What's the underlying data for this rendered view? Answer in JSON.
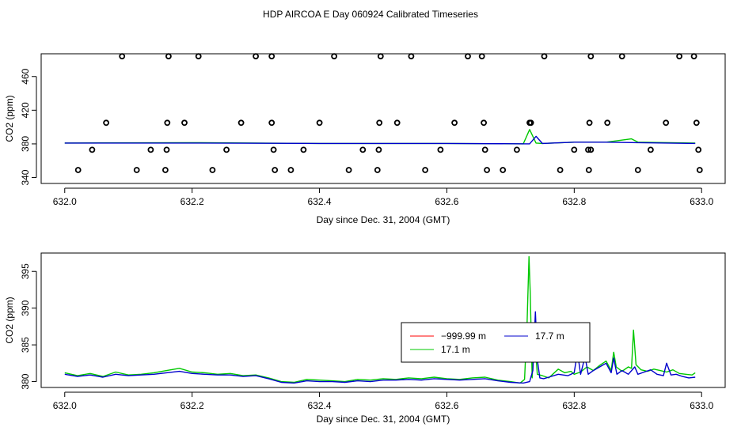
{
  "title": "HDP AIRCOA E  Day 060924  Calibrated Timeseries",
  "colors": {
    "red": "#ff0000",
    "green": "#00c800",
    "blue": "#0000cc",
    "black": "#000000"
  },
  "chart_data": [
    {
      "type": "scatter",
      "xlabel": "Day since Dec. 31, 2004 (GMT)",
      "ylabel": "CO2 (ppm)",
      "xlim": [
        632.0,
        633.0
      ],
      "ylim": [
        333,
        487
      ],
      "xticks": [
        "632.0",
        "632.2",
        "632.4",
        "632.6",
        "632.8",
        "633.0"
      ],
      "yticks": [
        "340",
        "380",
        "420",
        "460"
      ],
      "grid": false,
      "points": {
        "y484": [
          632.09,
          632.163,
          632.21,
          632.3,
          632.325,
          632.423,
          632.496,
          632.544,
          632.633,
          632.655,
          632.753,
          632.826,
          632.875,
          632.965,
          632.988
        ],
        "y405": [
          632.065,
          632.161,
          632.188,
          632.277,
          632.325,
          632.4,
          632.494,
          632.522,
          632.612,
          632.658,
          632.73,
          632.732,
          632.824,
          632.852,
          632.944,
          632.992
        ],
        "y373": [
          632.043,
          632.135,
          632.16,
          632.254,
          632.328,
          632.375,
          632.468,
          632.493,
          632.59,
          632.66,
          632.71,
          632.8,
          632.822,
          632.826,
          632.92,
          632.995
        ],
        "y349": [
          632.021,
          632.113,
          632.158,
          632.232,
          632.33,
          632.355,
          632.446,
          632.491,
          632.566,
          632.663,
          632.688,
          632.778,
          632.823,
          632.9,
          632.997
        ]
      },
      "series": [
        {
          "name": "",
          "color": "#00c800",
          "x": [
            632.0,
            632.2,
            632.4,
            632.6,
            632.72,
            632.73,
            632.74,
            632.75,
            632.8,
            632.85,
            632.89,
            632.9,
            632.99
          ],
          "y": [
            381.0,
            381.5,
            380.5,
            380.5,
            380.0,
            397.0,
            381.0,
            380.5,
            382.0,
            382.0,
            386.0,
            382.0,
            381.0
          ]
        },
        {
          "name": "",
          "color": "#0000cc",
          "x": [
            632.0,
            632.2,
            632.4,
            632.6,
            632.73,
            632.74,
            632.75,
            632.8,
            632.85,
            632.9,
            632.99
          ],
          "y": [
            381.0,
            381.0,
            380.5,
            380.5,
            380.0,
            389.0,
            380.5,
            382.0,
            382.0,
            381.5,
            380.5
          ]
        }
      ]
    },
    {
      "type": "line",
      "xlabel": "Day since Dec. 31, 2004 (GMT)",
      "ylabel": "CO2 (ppm)",
      "xlim": [
        632.0,
        633.0
      ],
      "ylim": [
        379.2,
        397.5
      ],
      "xticks": [
        "632.0",
        "632.2",
        "632.4",
        "632.6",
        "632.8",
        "633.0"
      ],
      "yticks": [
        "380",
        "385",
        "390",
        "395"
      ],
      "grid": false,
      "legend": {
        "placement": "center-right"
      },
      "series": [
        {
          "name": "−999.99 m",
          "color": "#ff0000",
          "x": [],
          "y": []
        },
        {
          "name": "17.1 m",
          "color": "#00c800",
          "x": [
            632.0,
            632.02,
            632.04,
            632.06,
            632.08,
            632.1,
            632.12,
            632.14,
            632.16,
            632.18,
            632.2,
            632.22,
            632.24,
            632.26,
            632.28,
            632.3,
            632.32,
            632.34,
            632.36,
            632.38,
            632.4,
            632.42,
            632.44,
            632.46,
            632.48,
            632.5,
            632.52,
            632.54,
            632.56,
            632.58,
            632.6,
            632.62,
            632.64,
            632.66,
            632.68,
            632.7,
            632.715,
            632.722,
            632.726,
            632.729,
            632.731,
            632.734,
            632.737,
            632.742,
            632.75,
            632.76,
            632.775,
            632.785,
            632.795,
            632.8,
            632.81,
            632.82,
            632.83,
            632.84,
            632.85,
            632.858,
            632.862,
            632.866,
            632.875,
            632.885,
            632.89,
            632.893,
            632.897,
            632.905,
            632.915,
            632.925,
            632.935,
            632.945,
            632.955,
            632.965,
            632.975,
            632.985,
            632.99
          ],
          "y": [
            381.2,
            380.8,
            381.1,
            380.7,
            381.3,
            380.9,
            381.0,
            381.2,
            381.5,
            381.8,
            381.3,
            381.2,
            381.0,
            381.1,
            380.8,
            380.9,
            380.5,
            380.0,
            379.9,
            380.3,
            380.2,
            380.1,
            380.0,
            380.3,
            380.2,
            380.4,
            380.3,
            380.5,
            380.4,
            380.6,
            380.4,
            380.3,
            380.5,
            380.6,
            380.2,
            380.0,
            379.8,
            380.3,
            388.0,
            397.0,
            392.0,
            380.5,
            387.0,
            381.0,
            380.8,
            380.5,
            381.7,
            381.2,
            381.4,
            381.0,
            381.3,
            382.0,
            381.5,
            382.2,
            382.8,
            381.5,
            384.0,
            382.0,
            381.4,
            382.0,
            381.8,
            387.0,
            382.3,
            381.6,
            381.4,
            381.7,
            381.5,
            381.3,
            381.6,
            381.1,
            381.0,
            380.9,
            381.2
          ]
        },
        {
          "name": "17.7 m",
          "color": "#0000cc",
          "x": [
            632.0,
            632.02,
            632.04,
            632.06,
            632.08,
            632.1,
            632.12,
            632.14,
            632.16,
            632.18,
            632.2,
            632.22,
            632.24,
            632.26,
            632.28,
            632.3,
            632.32,
            632.34,
            632.36,
            632.38,
            632.4,
            632.42,
            632.44,
            632.46,
            632.48,
            632.5,
            632.52,
            632.54,
            632.56,
            632.58,
            632.6,
            632.62,
            632.64,
            632.66,
            632.68,
            632.7,
            632.72,
            632.73,
            632.735,
            632.739,
            632.742,
            632.746,
            632.752,
            632.76,
            632.775,
            632.79,
            632.8,
            632.805,
            632.81,
            632.817,
            632.822,
            632.83,
            632.84,
            632.85,
            632.858,
            632.862,
            632.867,
            632.875,
            632.885,
            632.895,
            632.9,
            632.91,
            632.92,
            632.93,
            632.94,
            632.945,
            632.952,
            632.96,
            632.97,
            632.98,
            632.99
          ],
          "y": [
            381.0,
            380.7,
            380.9,
            380.6,
            381.0,
            380.8,
            380.9,
            381.0,
            381.2,
            381.4,
            381.1,
            381.0,
            380.9,
            380.9,
            380.7,
            380.8,
            380.4,
            379.9,
            379.8,
            380.1,
            380.0,
            380.0,
            379.9,
            380.1,
            380.0,
            380.2,
            380.2,
            380.3,
            380.2,
            380.4,
            380.3,
            380.2,
            380.3,
            380.4,
            380.1,
            379.9,
            379.8,
            380.0,
            381.5,
            389.5,
            383.0,
            380.5,
            380.4,
            380.6,
            381.0,
            380.8,
            381.2,
            384.0,
            381.0,
            383.4,
            381.0,
            381.5,
            382.0,
            382.5,
            381.2,
            383.2,
            381.0,
            381.5,
            381.0,
            382.0,
            381.0,
            381.3,
            381.6,
            381.0,
            380.8,
            382.5,
            380.9,
            381.0,
            380.7,
            380.5,
            380.6
          ]
        }
      ]
    }
  ]
}
